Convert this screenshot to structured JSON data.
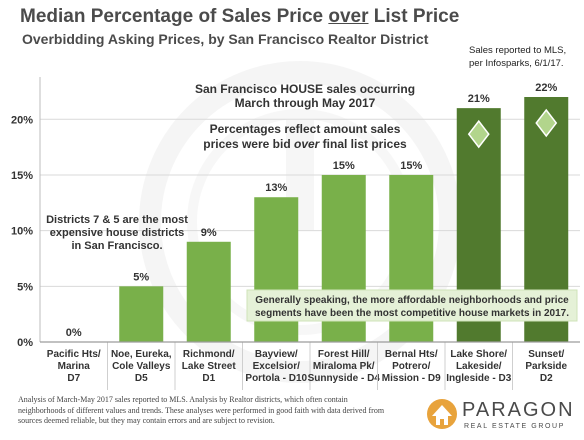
{
  "header": {
    "title_before": "Median Percentage of Sales Price ",
    "title_emph": "over",
    "title_after": " List Price",
    "subtitle": "Overbidding Asking Prices, by San Francisco Realtor District",
    "source_note": "Sales reported to MLS, per Infosparks, 6/1/17."
  },
  "annotations": {
    "top_line1": "San Francisco HOUSE sales occurring",
    "top_line2": "March through May 2017",
    "mid_line1": "Percentages reflect amount sales",
    "mid_line2_before": "prices were bid ",
    "mid_line2_emph": "over",
    "mid_line2_after": " final list prices",
    "left_line1": "Districts 7 & 5 are the most",
    "left_line2": "expensive house districts",
    "left_line3": "in San Francisco.",
    "box_line1": "Generally speaking, the more affordable neighborhoods and price",
    "box_line2": "segments have been the most competitive house markets in 2017."
  },
  "footnote": "Analysis of March-May 2017 sales reported to MLS. Analysis by Realtor districts, which often contain neighborhoods of different values and trends. These analyses were performed in good faith with data derived from sources deemed reliable, but they may contain errors and are subject to revision.",
  "logo": {
    "name": "PARAGON",
    "tagline": "REAL ESTATE GROUP"
  },
  "colors": {
    "bar": "#79b04a",
    "bar_dark": "#517a2e",
    "grid": "#d9d9d9",
    "diamond": "#b2d58c",
    "box": "#e5f1d7"
  },
  "chart_data": {
    "type": "bar",
    "title": "Median Percentage of Sales Price over List Price",
    "subtitle": "Overbidding Asking Prices, by San Francisco Realtor District",
    "categories": [
      [
        "Pacific Hts/",
        "Marina",
        "D7"
      ],
      [
        "Noe, Eureka,",
        "Cole Valleys",
        "D5"
      ],
      [
        "Richmond/",
        "Lake Street",
        "D1"
      ],
      [
        "Bayview/",
        "Excelsior/",
        "Portola - D10"
      ],
      [
        "Forest Hill/",
        "Miraloma Pk/",
        "Sunnyside - D4"
      ],
      [
        "Bernal Hts/",
        "Potrero/",
        "Mission - D9"
      ],
      [
        "Lake Shore/",
        "Lakeside/",
        "Ingleside - D3"
      ],
      [
        "Sunset/",
        "Parkside",
        "D2"
      ]
    ],
    "values": [
      0,
      5,
      9,
      13,
      15,
      15,
      21,
      22
    ],
    "data_labels": [
      "0%",
      "5%",
      "9%",
      "13%",
      "15%",
      "15%",
      "21%",
      "22%"
    ],
    "highlighted": [
      false,
      false,
      false,
      false,
      false,
      false,
      true,
      true
    ],
    "ylim": [
      0,
      22
    ],
    "yticks": [
      0,
      5,
      10,
      15,
      20
    ],
    "ytick_labels": [
      "0%",
      "5%",
      "10%",
      "15%",
      "20%"
    ],
    "grid": true
  }
}
